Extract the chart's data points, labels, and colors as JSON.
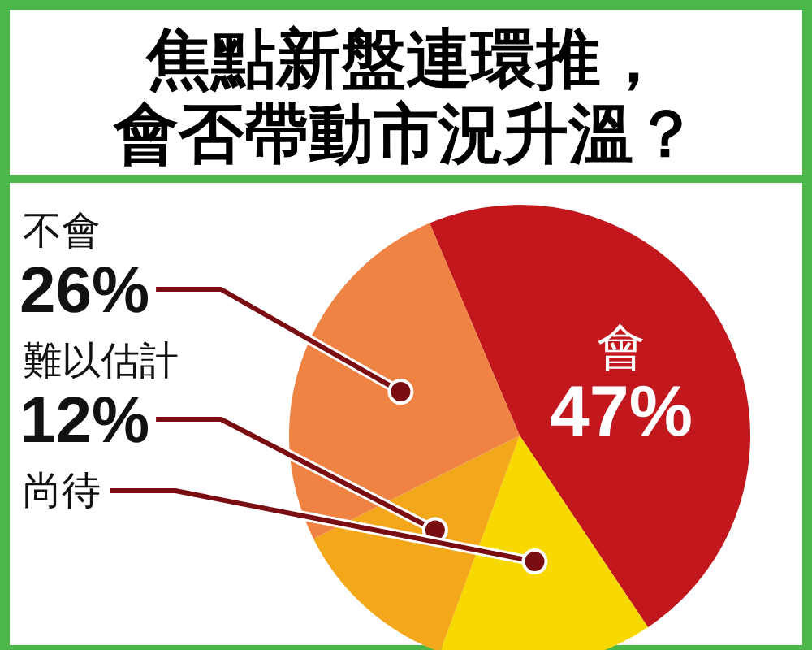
{
  "chart_data": {
    "type": "pie",
    "title": "焦點新盤連環推，",
    "subtitle": "會否帶動市況升溫？",
    "categories": [
      "會",
      "尚待",
      "難以估計",
      "不會"
    ],
    "values": [
      47,
      15,
      12,
      26
    ],
    "value_labels": [
      "47%",
      null,
      "12%",
      "26%"
    ],
    "colors": [
      "#c1171d",
      "#f7d900",
      "#f3a71b",
      "#ee8344"
    ]
  }
}
